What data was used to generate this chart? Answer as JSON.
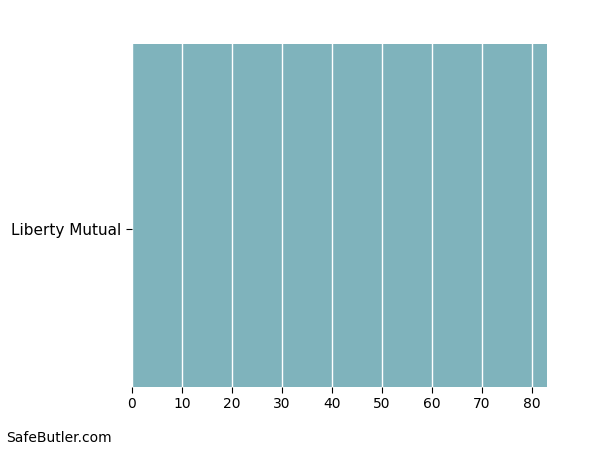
{
  "categories": [
    "Liberty Mutual"
  ],
  "values": [
    83
  ],
  "bar_color": "#7fb3bc",
  "xlim": [
    0,
    90
  ],
  "xticks": [
    0,
    10,
    20,
    30,
    40,
    50,
    60,
    70,
    80
  ],
  "grid_color": "#ffffff",
  "background_color": "#ffffff",
  "plot_background": "#ffffff",
  "watermark": "SafeButler.com",
  "label_fontsize": 11,
  "tick_fontsize": 10,
  "watermark_fontsize": 10,
  "bar_height": 3.5,
  "ylim": [
    -1.5,
    2.0
  ]
}
